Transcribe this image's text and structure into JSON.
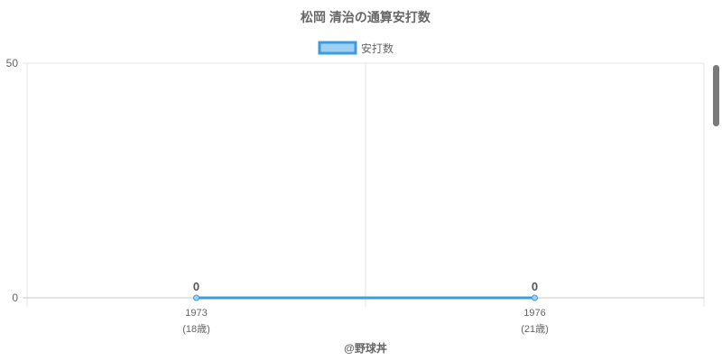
{
  "chart_data": {
    "type": "line",
    "title": "松岡 清治の通算安打数",
    "categories": [
      "1973",
      "1976"
    ],
    "category_sublabels": [
      "(18歳)",
      "(21歳)"
    ],
    "series": [
      {
        "name": "安打数",
        "values": [
          0,
          0
        ],
        "color": "#3d9be0",
        "fill": "#9fcff5"
      }
    ],
    "data_labels": [
      "0",
      "0"
    ],
    "ylim": [
      0,
      50
    ],
    "yticks": [
      "0",
      "50"
    ],
    "grid": true,
    "legend": "top"
  },
  "watermark": "@野球丼"
}
